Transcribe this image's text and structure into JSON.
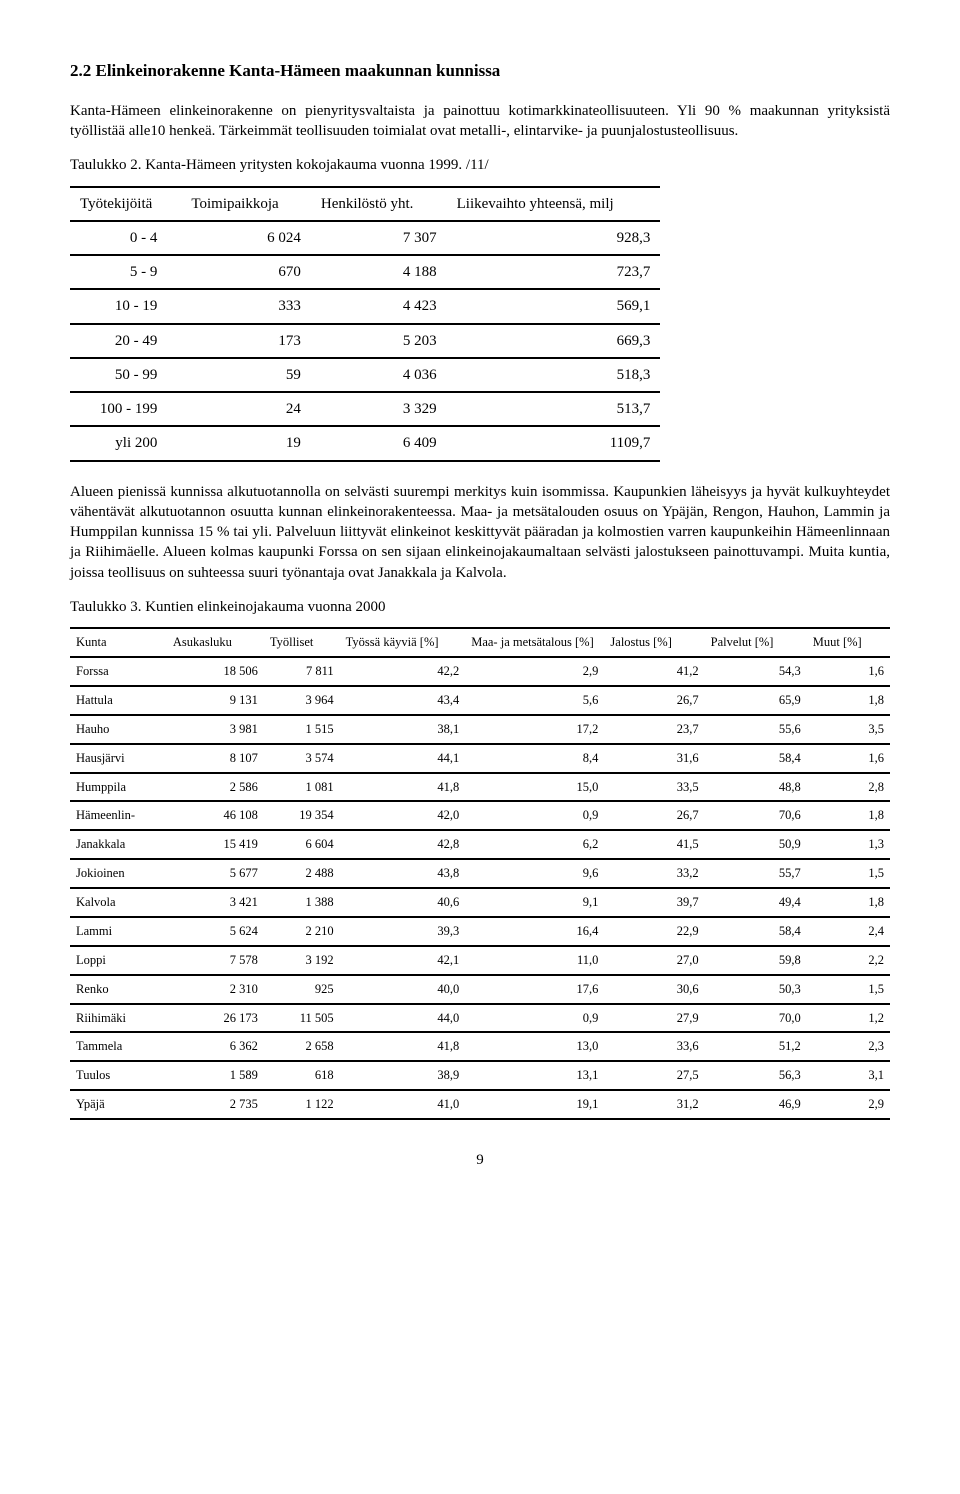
{
  "heading": "2.2   Elinkeinorakenne Kanta-Hämeen maakunnan kunnissa",
  "para1": "Kanta-Hämeen elinkeinorakenne on pienyritysvaltaista ja painottuu kotimarkkinateollisuuteen. Yli 90 % maakunnan yrityksistä työllistää alle10 henkeä. Tärkeimmät teollisuuden toimialat ovat metalli-, elintarvike- ja puunjalostusteollisuus.",
  "table1_caption": "Taulukko 2.   Kanta-Hämeen yritysten kokojakauma vuonna 1999. /11/",
  "table1": {
    "headers": [
      "Työtekijöitä",
      "Toimipaikkoja",
      "Henkilöstö yht.",
      "Liikevaihto yhteensä, milj"
    ],
    "rows": [
      [
        "0 - 4",
        "6 024",
        "7 307",
        "928,3"
      ],
      [
        "5 - 9",
        "670",
        "4 188",
        "723,7"
      ],
      [
        "10 - 19",
        "333",
        "4 423",
        "569,1"
      ],
      [
        "20 - 49",
        "173",
        "5 203",
        "669,3"
      ],
      [
        "50 - 99",
        "59",
        "4 036",
        "518,3"
      ],
      [
        "100 - 199",
        "24",
        "3 329",
        "513,7"
      ],
      [
        "yli 200",
        "19",
        "6 409",
        "1109,7"
      ]
    ]
  },
  "para2": "Alueen pienissä kunnissa alkutuotannolla on selvästi suurempi merkitys kuin isommissa. Kaupunkien läheisyys ja hyvät kulkuyhteydet vähentävät alkutuotannon osuutta kunnan elinkeinorakenteessa. Maa- ja metsätalouden osuus on Ypäjän, Rengon, Hauhon, Lammin ja Humppilan kunnissa 15 % tai yli. Palveluun liittyvät elinkeinot keskittyvät pääradan ja kolmostien varren kaupunkeihin Hämeenlinnaan ja Riihimäelle. Alueen kolmas kaupunki Forssa on sen sijaan elinkeinojakaumaltaan selvästi jalostukseen painottuvampi. Muita kuntia, joissa teollisuus on suhteessa suuri työnantaja ovat Janakkala ja Kalvola.",
  "table2_caption": "Taulukko 3.   Kuntien elinkeinojakauma vuonna 2000",
  "table2": {
    "headers": [
      "Kunta",
      "Asukasluku",
      "Työlliset",
      "Työssä käyviä [%]",
      "Maa- ja metsätalous [%]",
      "Jalostus [%]",
      "Palvelut [%]",
      "Muut [%]"
    ],
    "rows": [
      [
        "Forssa",
        "18 506",
        "7 811",
        "42,2",
        "2,9",
        "41,2",
        "54,3",
        "1,6"
      ],
      [
        "Hattula",
        "9 131",
        "3 964",
        "43,4",
        "5,6",
        "26,7",
        "65,9",
        "1,8"
      ],
      [
        "Hauho",
        "3 981",
        "1 515",
        "38,1",
        "17,2",
        "23,7",
        "55,6",
        "3,5"
      ],
      [
        "Hausjärvi",
        "8 107",
        "3 574",
        "44,1",
        "8,4",
        "31,6",
        "58,4",
        "1,6"
      ],
      [
        "Humppila",
        "2 586",
        "1 081",
        "41,8",
        "15,0",
        "33,5",
        "48,8",
        "2,8"
      ],
      [
        "Hämeenlin-",
        "46 108",
        "19 354",
        "42,0",
        "0,9",
        "26,7",
        "70,6",
        "1,8"
      ],
      [
        "Janakkala",
        "15 419",
        "6 604",
        "42,8",
        "6,2",
        "41,5",
        "50,9",
        "1,3"
      ],
      [
        "Jokioinen",
        "5 677",
        "2 488",
        "43,8",
        "9,6",
        "33,2",
        "55,7",
        "1,5"
      ],
      [
        "Kalvola",
        "3 421",
        "1 388",
        "40,6",
        "9,1",
        "39,7",
        "49,4",
        "1,8"
      ],
      [
        "Lammi",
        "5 624",
        "2 210",
        "39,3",
        "16,4",
        "22,9",
        "58,4",
        "2,4"
      ],
      [
        "Loppi",
        "7 578",
        "3 192",
        "42,1",
        "11,0",
        "27,0",
        "59,8",
        "2,2"
      ],
      [
        "Renko",
        "2 310",
        "925",
        "40,0",
        "17,6",
        "30,6",
        "50,3",
        "1,5"
      ],
      [
        "Riihimäki",
        "26 173",
        "11 505",
        "44,0",
        "0,9",
        "27,9",
        "70,0",
        "1,2"
      ],
      [
        "Tammela",
        "6 362",
        "2 658",
        "41,8",
        "13,0",
        "33,6",
        "51,2",
        "2,3"
      ],
      [
        "Tuulos",
        "1 589",
        "618",
        "38,9",
        "13,1",
        "27,5",
        "56,3",
        "3,1"
      ],
      [
        "Ypäjä",
        "2 735",
        "1 122",
        "41,0",
        "19,1",
        "31,2",
        "46,9",
        "2,9"
      ]
    ]
  },
  "page_number": "9"
}
